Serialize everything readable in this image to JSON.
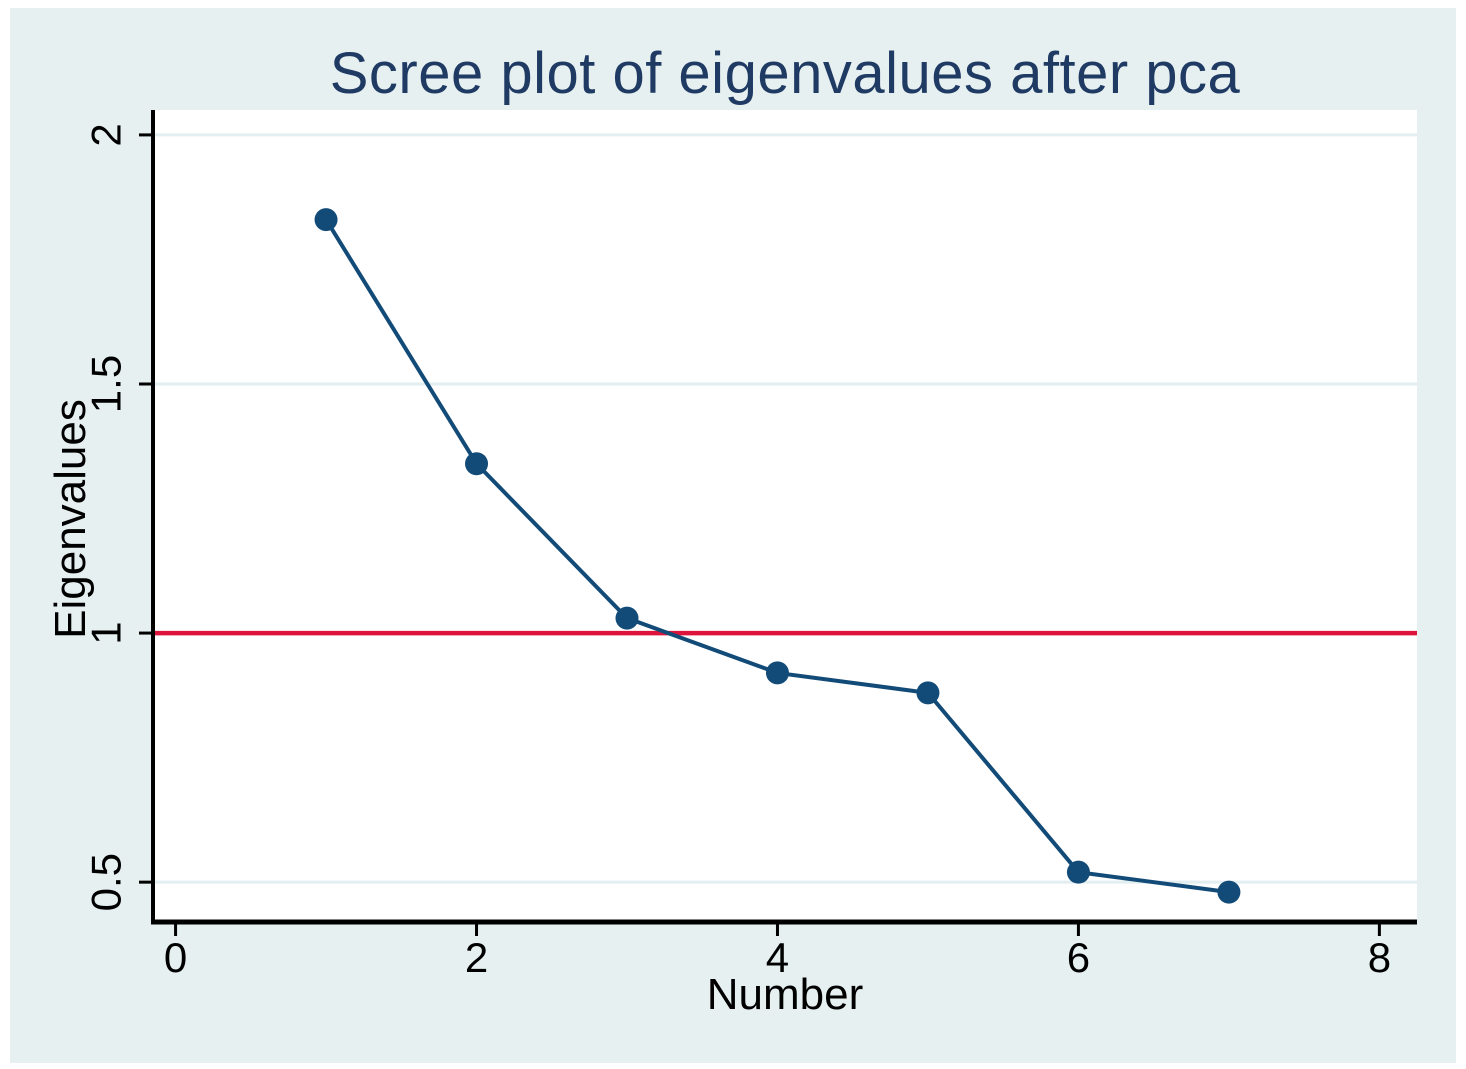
{
  "chart_data": {
    "type": "line",
    "title": "Scree plot of eigenvalues after pca",
    "xlabel": "Number",
    "ylabel": "Eigenvalues",
    "x": [
      1,
      2,
      3,
      4,
      5,
      6,
      7
    ],
    "y": [
      1.83,
      1.34,
      1.03,
      0.92,
      0.88,
      0.52,
      0.48
    ],
    "xticks": [
      0,
      2,
      4,
      6,
      8
    ],
    "xtick_labels": [
      "0",
      "2",
      "4",
      "6",
      "8"
    ],
    "yticks": [
      0.5,
      1,
      1.5,
      2
    ],
    "ytick_labels": [
      "0.5",
      "1",
      "1.5",
      "2"
    ],
    "xlim": [
      -0.15,
      8.25
    ],
    "ylim": [
      0.42,
      2.05
    ],
    "grid": true,
    "legend": "none",
    "refline": {
      "y": 1,
      "color": "#DC143C"
    },
    "colors": {
      "line": "#134B78",
      "marker": "#134B78",
      "title": "#1F3A63",
      "background": "#E6F0F1",
      "plot_background": "#FFFFFF",
      "grid": "#E2EEF0",
      "axis": "#000000",
      "text": "#000000"
    }
  }
}
